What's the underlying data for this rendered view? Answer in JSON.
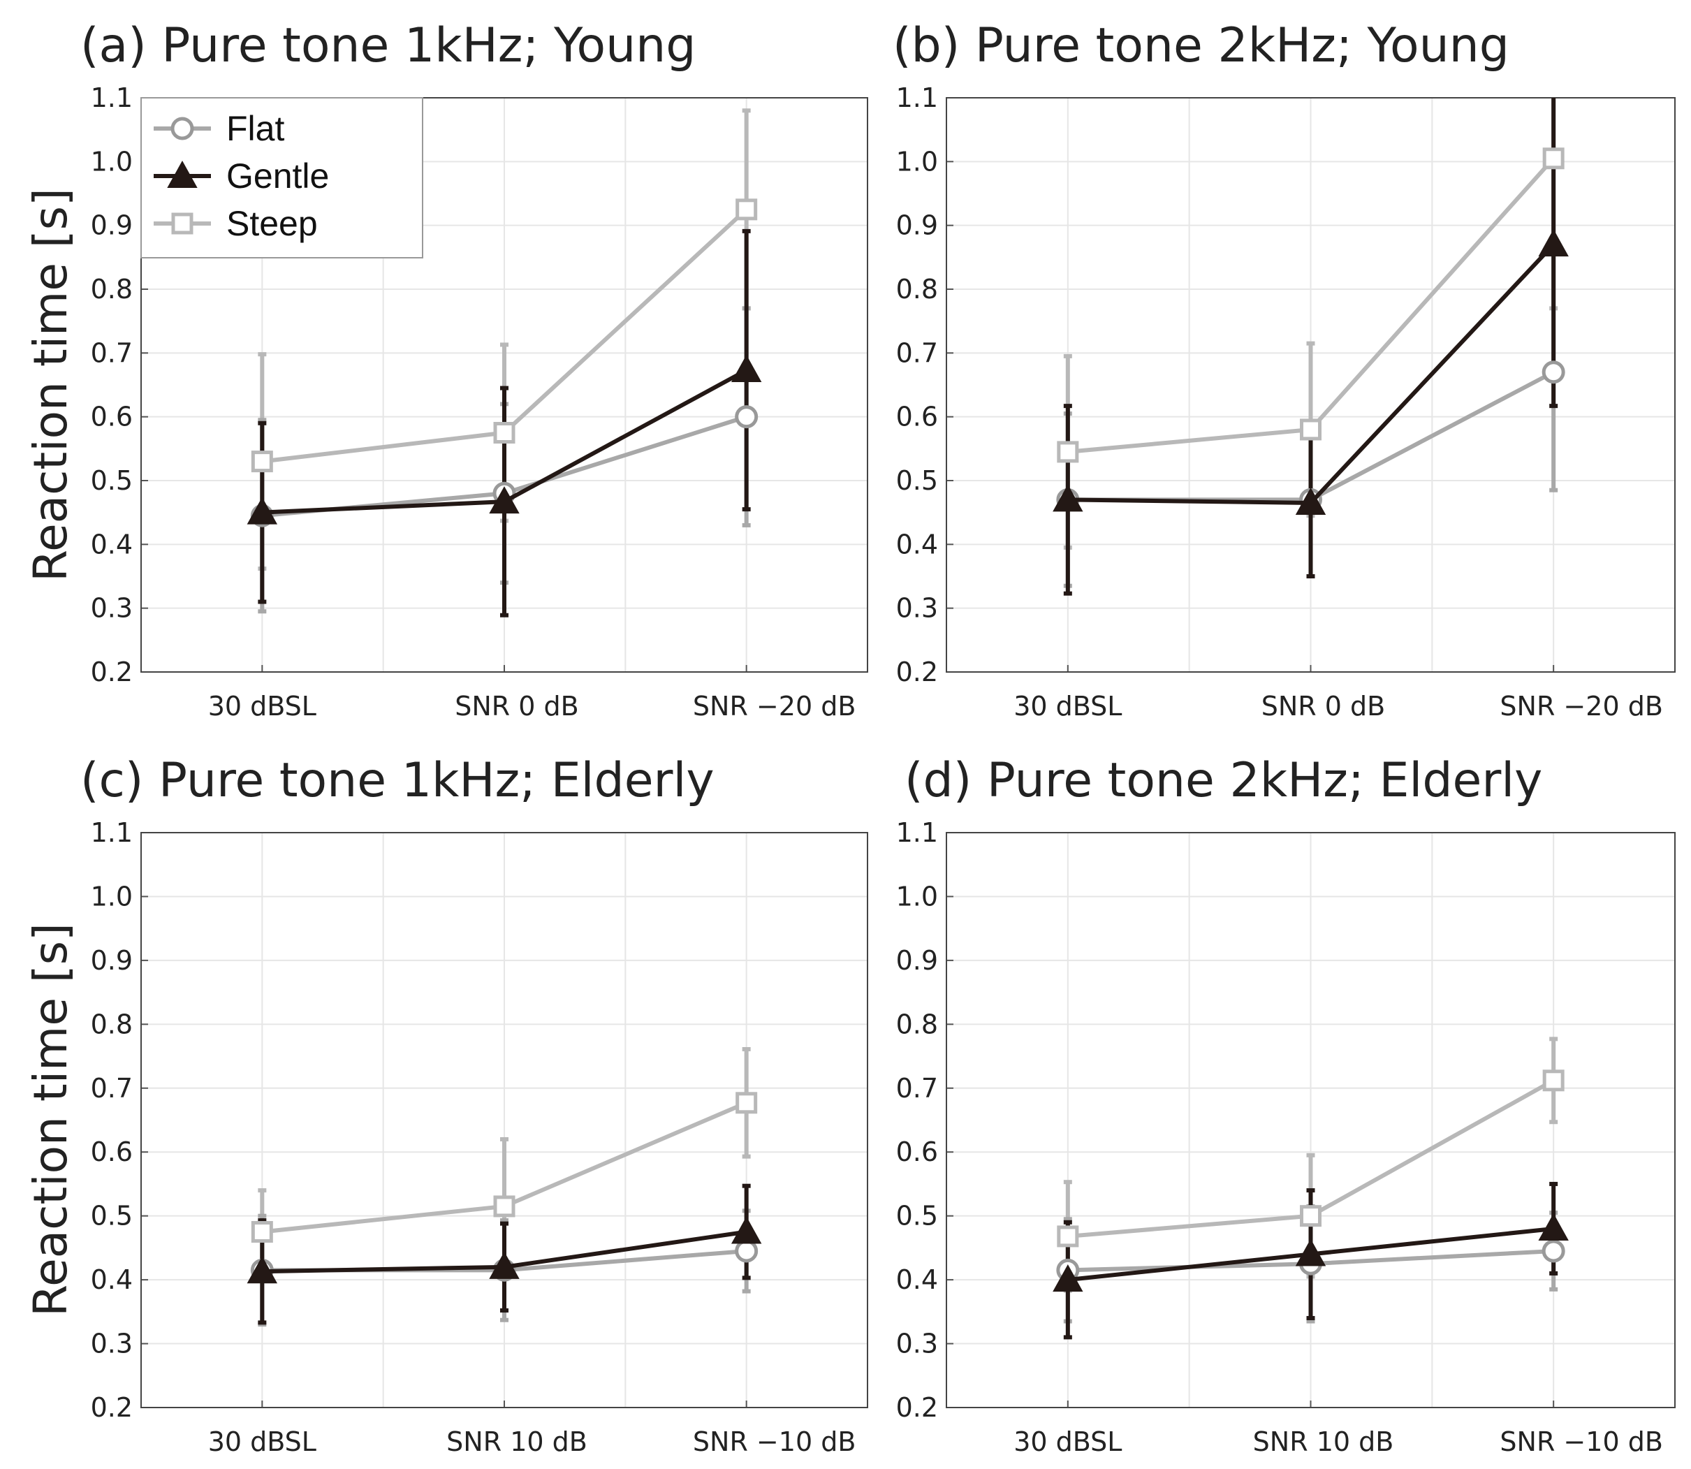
{
  "colors": {
    "Flat": "#a8a8a8",
    "Gentle": "#231815",
    "Steep": "#b8b8b8",
    "grid": "#e6e6e6"
  },
  "chart_data": [
    {
      "type": "line",
      "title": "(a) Pure tone 1kHz; Young",
      "ylabel": "Reaction time [s]",
      "xlabel": "",
      "categories": [
        "30 dBSL",
        "SNR 0 dB",
        "SNR −20 dB"
      ],
      "ylim": [
        0.2,
        1.1
      ],
      "yticks": [
        "0.2",
        "0.3",
        "0.4",
        "0.5",
        "0.6",
        "0.7",
        "0.8",
        "0.9",
        "1.0",
        "1.1"
      ],
      "grid": true,
      "legend": {
        "placement": "top-left",
        "entries": [
          "Flat",
          "Gentle",
          "Steep"
        ]
      },
      "series": [
        {
          "name": "Flat",
          "marker": "circle",
          "values": [
            0.445,
            0.48,
            0.6
          ],
          "errors": [
            0.15,
            0.14,
            0.17
          ]
        },
        {
          "name": "Gentle",
          "marker": "triangle",
          "values": [
            0.45,
            0.467,
            0.673
          ],
          "errors": [
            0.14,
            0.178,
            0.218
          ]
        },
        {
          "name": "Steep",
          "marker": "square",
          "values": [
            0.53,
            0.575,
            0.925
          ],
          "errors": [
            0.168,
            0.138,
            0.155
          ]
        }
      ]
    },
    {
      "type": "line",
      "title": "(b) Pure tone 2kHz; Young",
      "ylabel": "",
      "xlabel": "",
      "categories": [
        "30 dBSL",
        "SNR 0 dB",
        "SNR −20 dB"
      ],
      "ylim": [
        0.2,
        1.1
      ],
      "yticks": [
        "0.2",
        "0.3",
        "0.4",
        "0.5",
        "0.6",
        "0.7",
        "0.8",
        "0.9",
        "1.0",
        "1.1"
      ],
      "grid": true,
      "series": [
        {
          "name": "Flat",
          "marker": "circle",
          "values": [
            0.47,
            0.47,
            0.67
          ],
          "errors": [
            0.135,
            0.12,
            0.185
          ]
        },
        {
          "name": "Gentle",
          "marker": "triangle",
          "values": [
            0.47,
            0.465,
            0.87
          ],
          "errors": [
            0.147,
            0.115,
            0.253
          ]
        },
        {
          "name": "Steep",
          "marker": "square",
          "values": [
            0.545,
            0.58,
            1.005
          ],
          "errors": [
            0.15,
            0.135,
            0.235
          ]
        }
      ]
    },
    {
      "type": "line",
      "title": "(c) Pure tone 1kHz; Elderly",
      "ylabel": "Reaction time [s]",
      "xlabel": "",
      "categories": [
        "30 dBSL",
        "SNR 10 dB",
        "SNR −10 dB"
      ],
      "ylim": [
        0.2,
        1.1
      ],
      "yticks": [
        "0.2",
        "0.3",
        "0.4",
        "0.5",
        "0.6",
        "0.7",
        "0.8",
        "0.9",
        "1.0",
        "1.1"
      ],
      "grid": true,
      "series": [
        {
          "name": "Flat",
          "marker": "circle",
          "values": [
            0.415,
            0.415,
            0.445
          ],
          "errors": [
            0.085,
            0.078,
            0.063
          ]
        },
        {
          "name": "Gentle",
          "marker": "triangle",
          "values": [
            0.413,
            0.42,
            0.475
          ],
          "errors": [
            0.08,
            0.068,
            0.072
          ]
        },
        {
          "name": "Steep",
          "marker": "square",
          "values": [
            0.475,
            0.515,
            0.677
          ],
          "errors": [
            0.065,
            0.105,
            0.084
          ]
        }
      ]
    },
    {
      "type": "line",
      "title": "(d) Pure tone 2kHz; Elderly",
      "ylabel": "",
      "xlabel": "",
      "categories": [
        "30 dBSL",
        "SNR 10 dB",
        "SNR −10 dB"
      ],
      "ylim": [
        0.2,
        1.1
      ],
      "yticks": [
        "0.2",
        "0.3",
        "0.4",
        "0.5",
        "0.6",
        "0.7",
        "0.8",
        "0.9",
        "1.0",
        "1.1"
      ],
      "grid": true,
      "series": [
        {
          "name": "Flat",
          "marker": "circle",
          "values": [
            0.415,
            0.425,
            0.445
          ],
          "errors": [
            0.08,
            0.09,
            0.06
          ]
        },
        {
          "name": "Gentle",
          "marker": "triangle",
          "values": [
            0.4,
            0.44,
            0.48
          ],
          "errors": [
            0.09,
            0.1,
            0.07
          ]
        },
        {
          "name": "Steep",
          "marker": "square",
          "values": [
            0.468,
            0.5,
            0.712
          ],
          "errors": [
            0.085,
            0.095,
            0.065
          ]
        }
      ]
    }
  ]
}
